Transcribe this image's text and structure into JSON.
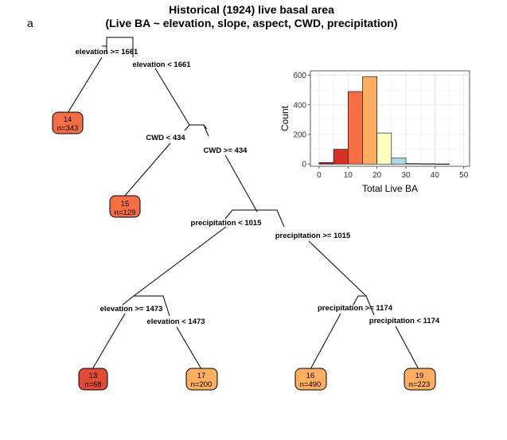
{
  "panel_letter": "a",
  "title_line1": "Historical (1924) live basal area",
  "title_line2": "(Live BA ~ elevation, slope, aspect, CWD, precipitation)",
  "splits": {
    "s1_left": "elevation >= 1661",
    "s1_right": "elevation < 1661",
    "s2_left": "CWD < 434",
    "s2_right": "CWD >= 434",
    "s3_left": "precipitation < 1015",
    "s3_right": "precipitation >= 1015",
    "s4_left": "elevation >= 1473",
    "s4_right": "elevation < 1473",
    "s5_left": "precipitation >= 1174",
    "s5_right": "precipitation < 1174"
  },
  "leaves": [
    {
      "id": "leaf1",
      "value": "14",
      "n": "n=343",
      "color": "#f46d43"
    },
    {
      "id": "leaf2",
      "value": "15",
      "n": "n=129",
      "color": "#f46d43"
    },
    {
      "id": "leaf3",
      "value": "13",
      "n": "n=68",
      "color": "#e34a33"
    },
    {
      "id": "leaf4",
      "value": "17",
      "n": "n=200",
      "color": "#fdae61"
    },
    {
      "id": "leaf5",
      "value": "16",
      "n": "n=490",
      "color": "#fdae61"
    },
    {
      "id": "leaf6",
      "value": "19",
      "n": "n=223",
      "color": "#fdae61"
    }
  ],
  "chart_data": {
    "type": "bar",
    "subtype": "histogram",
    "xlabel": "Total Live BA",
    "ylabel": "Count",
    "xlim": [
      -3,
      52
    ],
    "ylim": [
      -15,
      630
    ],
    "xticks": [
      0,
      10,
      20,
      30,
      40,
      50
    ],
    "yticks": [
      0,
      200,
      400,
      600
    ],
    "grid": true,
    "bins": [
      {
        "x0": 0,
        "x1": 5,
        "count": 10,
        "color": "#b2182b"
      },
      {
        "x0": 5,
        "x1": 10,
        "count": 100,
        "color": "#d73027"
      },
      {
        "x0": 10,
        "x1": 15,
        "count": 490,
        "color": "#f46d43"
      },
      {
        "x0": 15,
        "x1": 20,
        "count": 590,
        "color": "#fdae61"
      },
      {
        "x0": 20,
        "x1": 25,
        "count": 210,
        "color": "#ffffbf"
      },
      {
        "x0": 25,
        "x1": 30,
        "count": 40,
        "color": "#abd9e9"
      },
      {
        "x0": 30,
        "x1": 35,
        "count": 3,
        "color": "#74add1"
      },
      {
        "x0": 35,
        "x1": 40,
        "count": 2,
        "color": "#4575b4"
      },
      {
        "x0": 40,
        "x1": 45,
        "count": 1,
        "color": "#313695"
      }
    ]
  }
}
